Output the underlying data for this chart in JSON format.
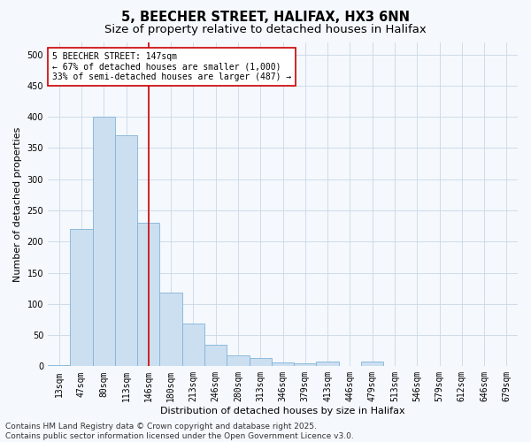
{
  "title1": "5, BEECHER STREET, HALIFAX, HX3 6NN",
  "title2": "Size of property relative to detached houses in Halifax",
  "xlabel": "Distribution of detached houses by size in Halifax",
  "ylabel": "Number of detached properties",
  "categories": [
    "13sqm",
    "47sqm",
    "80sqm",
    "113sqm",
    "146sqm",
    "180sqm",
    "213sqm",
    "246sqm",
    "280sqm",
    "313sqm",
    "346sqm",
    "379sqm",
    "413sqm",
    "446sqm",
    "479sqm",
    "513sqm",
    "546sqm",
    "579sqm",
    "612sqm",
    "646sqm",
    "679sqm"
  ],
  "values": [
    2,
    220,
    400,
    370,
    230,
    118,
    68,
    35,
    17,
    13,
    6,
    5,
    7,
    0,
    7,
    0,
    0,
    0,
    0,
    0,
    0
  ],
  "bar_color": "#ccdff0",
  "bar_edge_color": "#7fb3d9",
  "grid_color": "#c8d8e8",
  "vline_x_index": 4,
  "vline_color": "#cc0000",
  "annotation_line1": "5 BEECHER STREET: 147sqm",
  "annotation_line2": "← 67% of detached houses are smaller (1,000)",
  "annotation_line3": "33% of semi-detached houses are larger (487) →",
  "annotation_box_color": "#ffffff",
  "annotation_box_edge": "#cc0000",
  "footer": "Contains HM Land Registry data © Crown copyright and database right 2025.\nContains public sector information licensed under the Open Government Licence v3.0.",
  "ylim": [
    0,
    520
  ],
  "yticks": [
    0,
    50,
    100,
    150,
    200,
    250,
    300,
    350,
    400,
    450,
    500
  ],
  "bg_color": "#f5f8fc",
  "title1_fontsize": 10.5,
  "title2_fontsize": 9.5,
  "axis_label_fontsize": 8,
  "tick_fontsize": 7,
  "annotation_fontsize": 7,
  "footer_fontsize": 6.5
}
